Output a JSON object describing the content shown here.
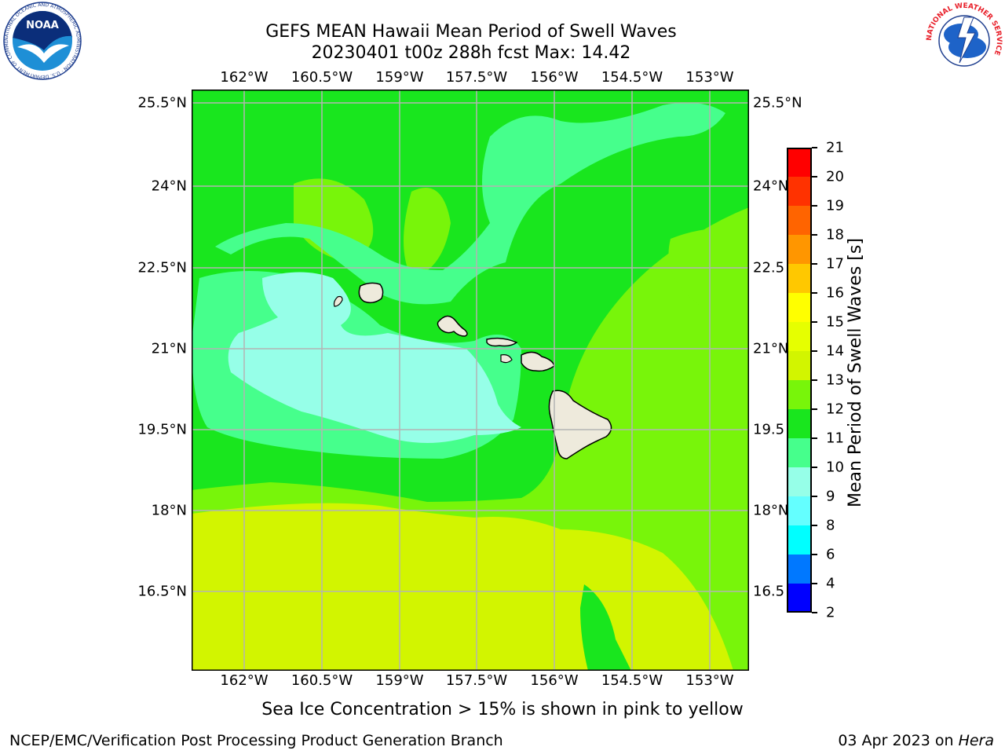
{
  "header": {
    "title_line1": "GEFS MEAN Hawaii Mean Period of Swell Waves",
    "title_line2": "20230401 t00z 288h fcst   Max: 14.42"
  },
  "logos": {
    "noaa_text": "NOAA",
    "noaa_ring_text": "NATIONAL OCEANIC AND ATMOSPHERIC ADMINISTRATION · U.S. DEPARTMENT OF COMMERCE",
    "nws_ring_text": "NATIONAL WEATHER SERVICE"
  },
  "map": {
    "lon_labels": [
      "162°W",
      "160.5°W",
      "159°W",
      "157.5°W",
      "156°W",
      "154.5°W",
      "153°W"
    ],
    "lat_labels_left": [
      "25.5°N",
      "24°N",
      "22.5°N",
      "21°N",
      "19.5°N",
      "18°N",
      "16.5°N"
    ],
    "lat_labels_right": [
      "25.5°N",
      "24°N",
      "22.5",
      "21°N",
      "19.5",
      "18°N",
      "16.5"
    ],
    "field_colors": {
      "period_9_10": "#96ffe8",
      "period_10_11": "#46ff8c",
      "period_11_12": "#19e61e",
      "period_12_13": "#78f50a",
      "period_13_14": "#d2f500",
      "land": "#eeeadc"
    }
  },
  "colorbar": {
    "title": "Mean Period of Swell Waves [s]",
    "ticks": [
      "21",
      "20",
      "19",
      "18",
      "17",
      "16",
      "15",
      "14",
      "13",
      "12",
      "11",
      "10",
      "9",
      "8",
      "6",
      "4",
      "2"
    ],
    "colors_top_to_bottom": [
      "#ff0000",
      "#ff3200",
      "#ff6400",
      "#ff9600",
      "#ffc800",
      "#ffff00",
      "#e6ff00",
      "#d2f500",
      "#78f50a",
      "#19e61e",
      "#46ff8c",
      "#96ffe8",
      "#64ffff",
      "#00ffff",
      "#0078ff",
      "#0000ff"
    ]
  },
  "footer": {
    "note": "Sea Ice Concentration > 15% is shown in pink to yellow",
    "branch": "NCEP/EMC/Verification Post Processing Product Generation Branch",
    "date": "03 Apr 2023 on ",
    "machine": "Hera"
  }
}
